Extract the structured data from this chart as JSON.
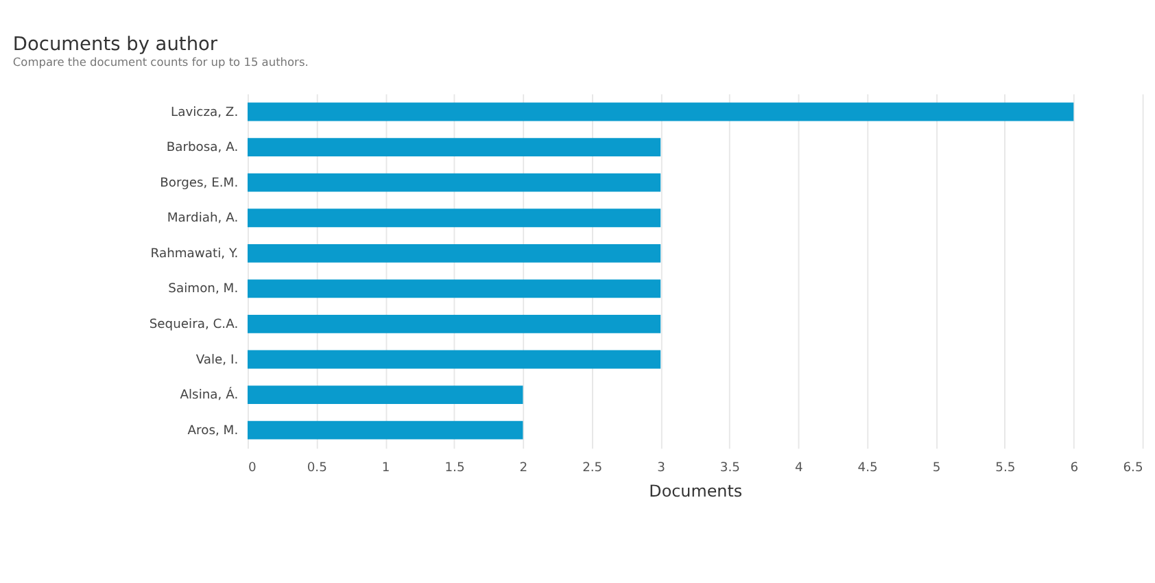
{
  "chart_data": {
    "type": "bar",
    "orientation": "horizontal",
    "title": "Documents by author",
    "subtitle": "Compare the document counts for up to 15 authors.",
    "xlabel": "Documents",
    "categories": [
      "Lavicza, Z.",
      "Barbosa, A.",
      "Borges, E.M.",
      "Mardiah, A.",
      "Rahmawati, Y.",
      "Saimon, M.",
      "Sequeira, C.A.",
      "Vale, I.",
      "Alsina, Á.",
      "Aros, M."
    ],
    "values": [
      6,
      3,
      3,
      3,
      3,
      3,
      3,
      3,
      2,
      2
    ],
    "color": "#0a9bcd",
    "xlim": [
      0,
      6.5
    ],
    "xticks": [
      0,
      0.5,
      1,
      1.5,
      2,
      2.5,
      3,
      3.5,
      4,
      4.5,
      5,
      5.5,
      6,
      6.5
    ],
    "grid": "x"
  }
}
